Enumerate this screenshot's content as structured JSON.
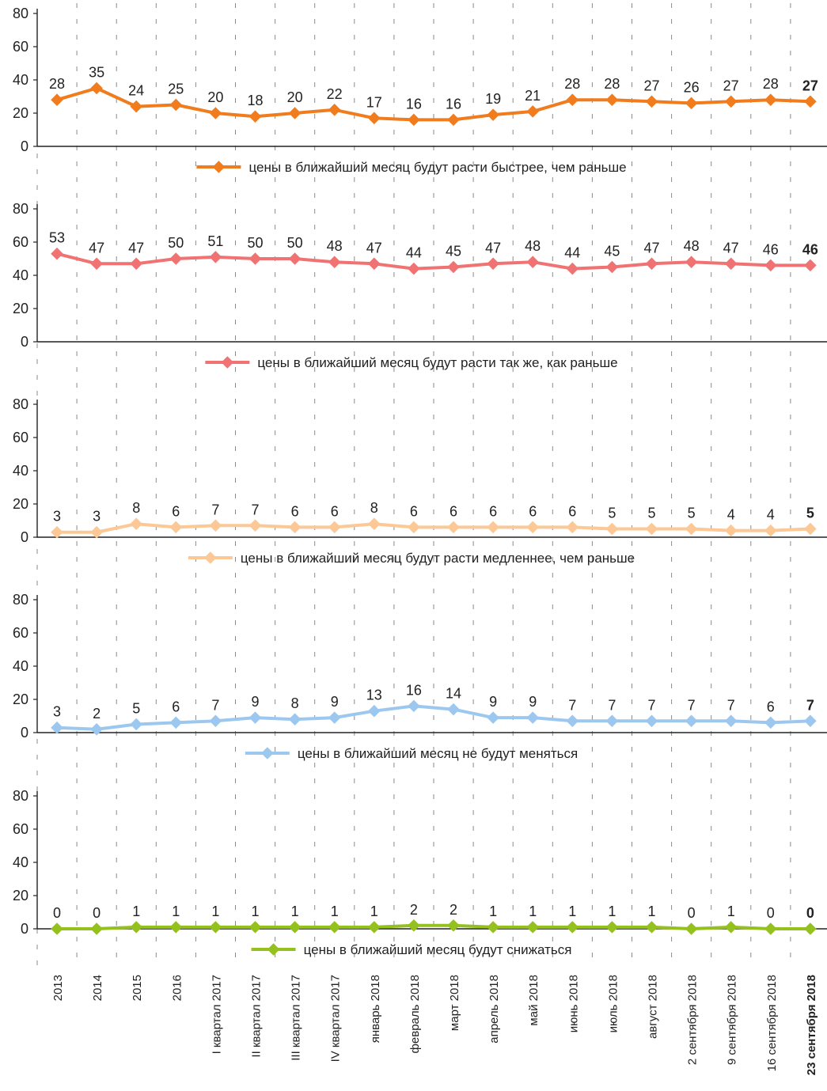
{
  "chart_data": {
    "type": "line",
    "categories": [
      "2013",
      "2014",
      "2015",
      "2016",
      "I квартал 2017",
      "II квартал 2017",
      "III квартал 2017",
      "IV квартал 2017",
      "январь 2018",
      "февраль 2018",
      "март 2018",
      "апрель 2018",
      "май 2018",
      "июнь 2018",
      "июль 2018",
      "август 2018",
      "2 сентября 2018",
      "9 сентября 2018",
      "16 сентября 2018",
      "23 сентября 2018"
    ],
    "yticks": [
      "0",
      "20",
      "40",
      "60",
      "80"
    ],
    "ylim": [
      0,
      80
    ],
    "grid": "vertical dashed",
    "series": [
      {
        "name": "цены в ближайший месяц будут расти быстрее, чем раньше",
        "color": "#f07c1e",
        "values": [
          28,
          35,
          24,
          25,
          20,
          18,
          20,
          22,
          17,
          16,
          16,
          19,
          21,
          28,
          28,
          27,
          26,
          27,
          28,
          27
        ],
        "labels": [
          "28",
          "35",
          "24",
          "25",
          "20",
          "18",
          "20",
          "22",
          "17",
          "16",
          "16",
          "19",
          "21",
          "28",
          "28",
          "27",
          "26",
          "27",
          "28",
          "27"
        ]
      },
      {
        "name": "цены в ближайший месяц будут расти так же, как раньше",
        "color": "#f07272",
        "values": [
          53,
          47,
          47,
          50,
          51,
          50,
          50,
          48,
          47,
          44,
          45,
          47,
          48,
          44,
          45,
          47,
          48,
          47,
          46,
          46
        ],
        "labels": [
          "53",
          "47",
          "47",
          "50",
          "51",
          "50",
          "50",
          "48",
          "47",
          "44",
          "45",
          "47",
          "48",
          "44",
          "45",
          "47",
          "48",
          "47",
          "46",
          "46"
        ]
      },
      {
        "name": "цены в ближайший месяц будут расти медленнее, чем раньше",
        "color": "#fbc896",
        "values": [
          3,
          3,
          8,
          6,
          7,
          7,
          6,
          6,
          8,
          6,
          6,
          6,
          6,
          6,
          5,
          5,
          5,
          4,
          4,
          5
        ],
        "labels": [
          "3",
          "3",
          "8",
          "6",
          "7",
          "7",
          "6",
          "6",
          "8",
          "6",
          "6",
          "6",
          "6",
          "6",
          "5",
          "5",
          "5",
          "4",
          "4",
          "5"
        ]
      },
      {
        "name": "цены в ближайший месяц не будут меняться",
        "color": "#9cc8f0",
        "values": [
          3,
          2,
          5,
          6,
          7,
          9,
          8,
          9,
          13,
          16,
          14,
          9,
          9,
          7,
          7,
          7,
          7,
          7,
          6,
          7
        ],
        "labels": [
          "3",
          "2",
          "5",
          "6",
          "7",
          "9",
          "8",
          "9",
          "13",
          "16",
          "14",
          "9",
          "9",
          "7",
          "7",
          "7",
          "7",
          "7",
          "6",
          "7"
        ]
      },
      {
        "name": "цены в ближайший месяц будут снижаться",
        "color": "#94c11e",
        "values": [
          0,
          0,
          1,
          1,
          1,
          1,
          1,
          1,
          1,
          2,
          2,
          1,
          1,
          1,
          1,
          1,
          0,
          1,
          0,
          0
        ],
        "labels": [
          "0",
          "0",
          "1",
          "1",
          "1",
          "1",
          "1",
          "1",
          "1",
          "2",
          "2",
          "1",
          "1",
          "1",
          "1",
          "1",
          "0",
          "1",
          "0",
          "0"
        ]
      }
    ]
  }
}
